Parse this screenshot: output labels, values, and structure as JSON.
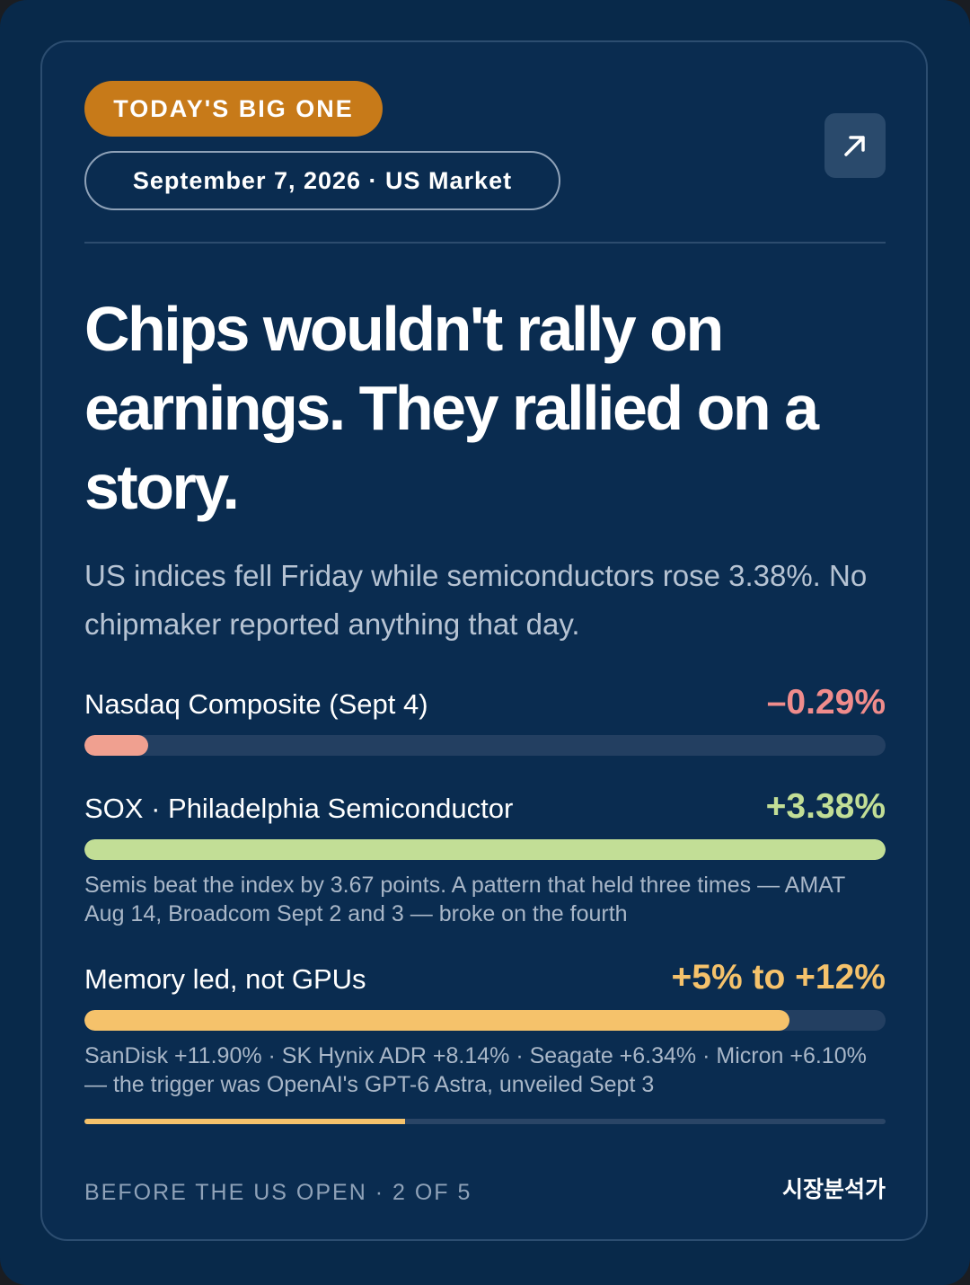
{
  "card": {
    "badge": "TODAY'S BIG ONE",
    "date_pill": "September 7, 2026 · US Market",
    "share_icon": "arrow-up-right-icon",
    "headline": "Chips wouldn't rally on earnings. They rallied on a story.",
    "subhead": "US indices fell Friday while semiconductors rose 3.38%. No chipmaker reported anything that day."
  },
  "rows": [
    {
      "label": "Nasdaq Composite (Sept 4)",
      "value": "–0.29%",
      "bar_fraction": 0.08,
      "color": "#f0a090",
      "value_color": "#f08c8c"
    },
    {
      "label": "SOX · Philadelphia Semiconductor",
      "value": "+3.38%",
      "bar_fraction": 1.0,
      "color": "#c2de96",
      "value_color": "#c2de96",
      "note": "Semis beat the index by 3.67 points. A pattern that held three times — AMAT Aug 14, Broadcom Sept 2 and 3 — broke on the fourth"
    },
    {
      "label": "Memory led, not GPUs",
      "value": "+5% to +12%",
      "bar_fraction": 0.88,
      "color": "#f5c26b",
      "value_color": "#f5c26b",
      "note": "SanDisk +11.90% · SK Hynix ADR +8.14% · Seagate +6.34% · Micron +6.10% — the trigger was OpenAI's GPT-6 Astra, unveiled Sept 3"
    }
  ],
  "progress": {
    "fraction": 0.4
  },
  "footer": {
    "left": "BEFORE THE US OPEN · 2 OF 5",
    "right": "시장분석가"
  },
  "colors": {
    "background": "#08294a",
    "badge": "#c77a19",
    "accent_green": "#c2de96",
    "accent_amber": "#f5c26b",
    "accent_red": "#f08c8c"
  }
}
